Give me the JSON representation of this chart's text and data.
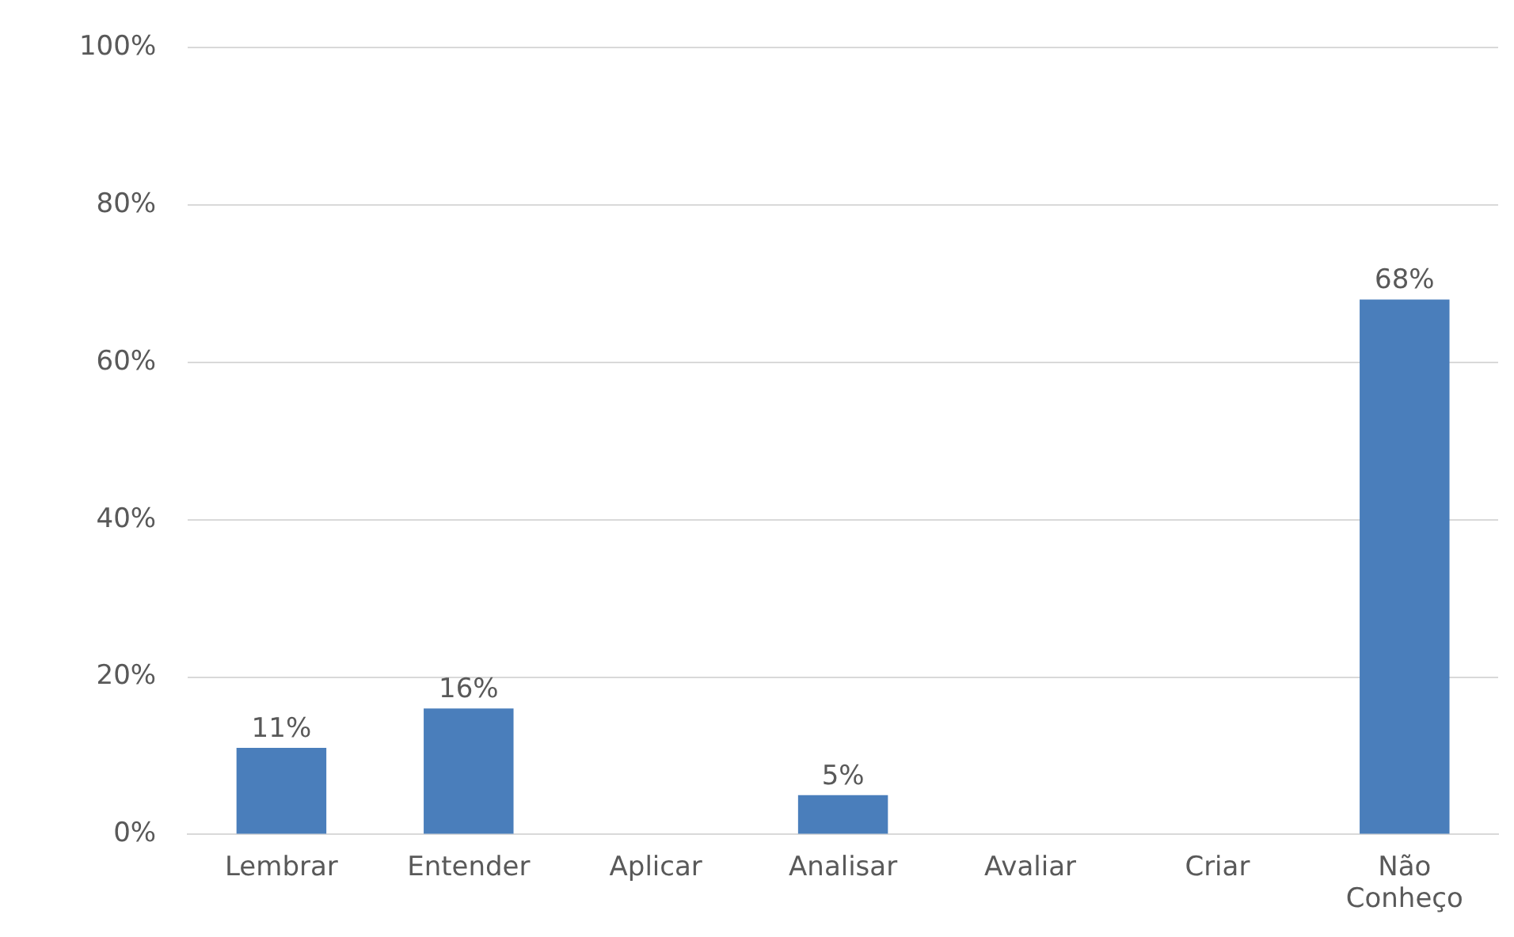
{
  "chart_data": {
    "type": "bar",
    "categories": [
      "Lembrar",
      "Entender",
      "Aplicar",
      "Analisar",
      "Avaliar",
      "Criar",
      "Não Conheço"
    ],
    "values": [
      11,
      16,
      0,
      5,
      0,
      0,
      68
    ],
    "value_labels": [
      "11%",
      "16%",
      null,
      "5%",
      null,
      null,
      "68%"
    ],
    "color": "#4a7ebb",
    "ylim": [
      0,
      100
    ],
    "yticks": [
      {
        "value": 0,
        "label": "0%"
      },
      {
        "value": 20,
        "label": "20%"
      },
      {
        "value": 40,
        "label": "40%"
      },
      {
        "value": 60,
        "label": "60%"
      },
      {
        "value": 80,
        "label": "80%"
      },
      {
        "value": 100,
        "label": "100%"
      }
    ],
    "grid": "y",
    "legend": false
  }
}
